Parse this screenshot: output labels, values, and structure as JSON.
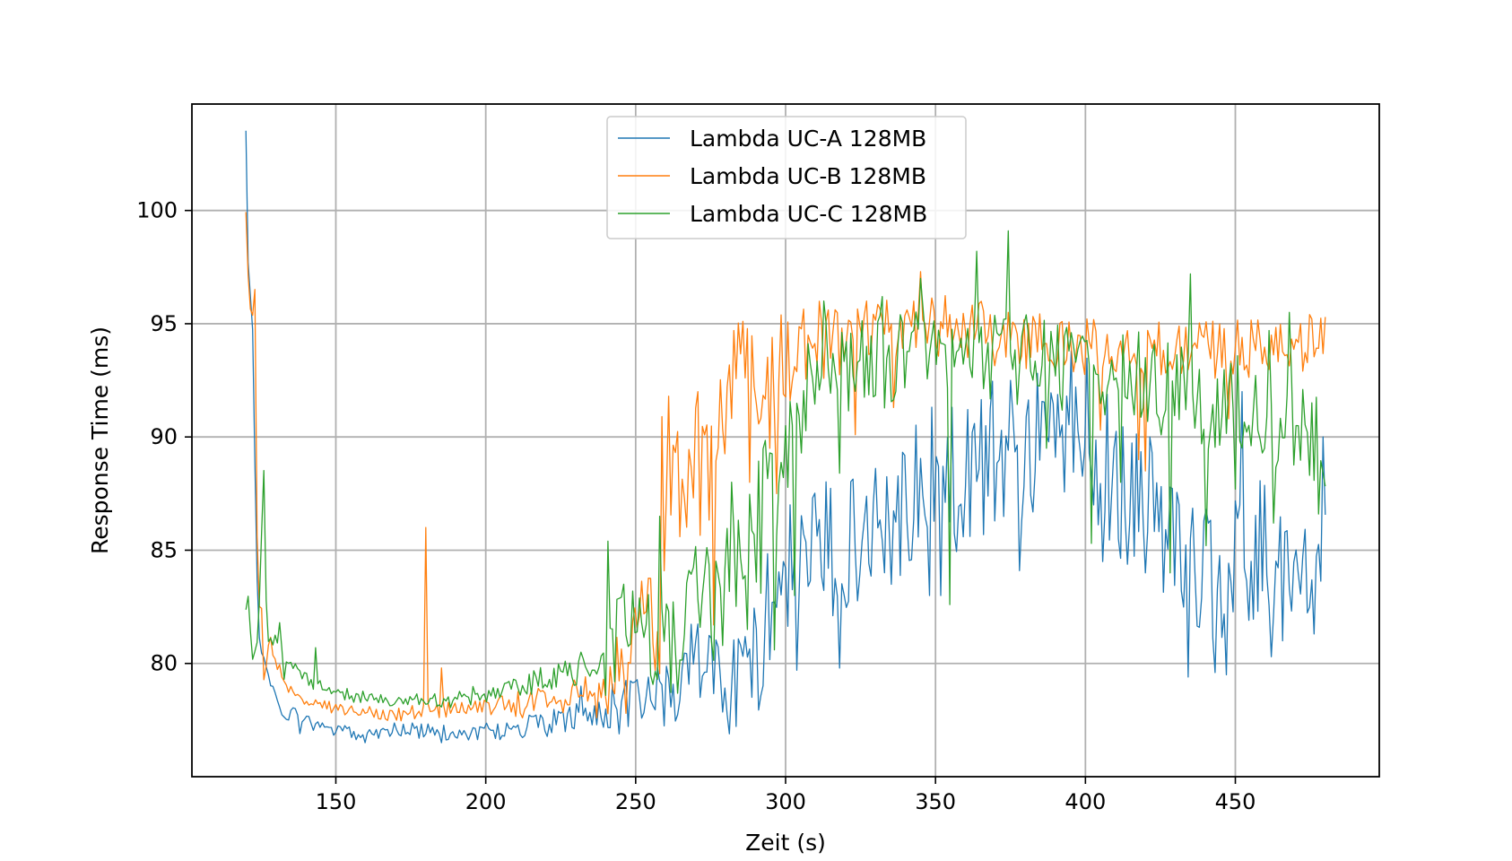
{
  "chart_data": {
    "type": "line",
    "title": "",
    "xlabel": "Zeit (s)",
    "ylabel": "Response Time (ms)",
    "xlim": [
      102,
      498
    ],
    "ylim": [
      75,
      104.7
    ],
    "xticks": [
      150,
      200,
      250,
      300,
      350,
      400,
      450
    ],
    "yticks": [
      80,
      85,
      90,
      95,
      100
    ],
    "grid": true,
    "legend_position": "top-center",
    "x_start": 120,
    "x_end": 480,
    "series": [
      {
        "name": "Lambda UC-A 128MB",
        "color": "#1f77b4",
        "keypoints": [
          [
            120,
            103.4
          ],
          [
            121,
            95.8
          ],
          [
            122,
            96.7
          ],
          [
            123,
            89.0
          ],
          [
            124,
            82.0
          ],
          [
            125,
            80.5
          ],
          [
            127,
            79.8
          ],
          [
            130,
            78.5
          ],
          [
            133,
            77.3
          ],
          [
            136,
            78.2
          ],
          [
            140,
            77.4
          ],
          [
            150,
            77.0
          ],
          [
            160,
            76.9
          ],
          [
            170,
            77.1
          ],
          [
            180,
            77.0
          ],
          [
            190,
            76.9
          ],
          [
            200,
            77.0
          ],
          [
            210,
            77.1
          ],
          [
            220,
            77.3
          ],
          [
            230,
            77.6
          ],
          [
            240,
            77.9
          ],
          [
            250,
            78.2
          ],
          [
            260,
            78.6
          ],
          [
            265,
            78.7
          ],
          [
            267,
            80.5
          ],
          [
            275,
            79.6
          ],
          [
            285,
            79.1
          ],
          [
            290,
            80.0
          ],
          [
            295,
            83.0
          ],
          [
            300,
            84.0
          ],
          [
            305,
            84.5
          ],
          [
            310,
            84.8
          ],
          [
            320,
            85.5
          ],
          [
            330,
            86.2
          ],
          [
            340,
            87.0
          ],
          [
            350,
            88.0
          ],
          [
            360,
            88.5
          ],
          [
            370,
            89.3
          ],
          [
            380,
            89.5
          ],
          [
            390,
            90.0
          ],
          [
            400,
            90.3
          ],
          [
            410,
            88.0
          ],
          [
            420,
            87.0
          ],
          [
            430,
            85.0
          ],
          [
            440,
            84.0
          ],
          [
            450,
            84.3
          ],
          [
            460,
            85.0
          ],
          [
            470,
            84.0
          ],
          [
            480,
            84.5
          ]
        ],
        "noise": [
          0.3,
          0.3,
          0.3,
          0.35,
          0.35,
          0.45,
          0.6,
          0.7,
          1.2,
          1.9,
          2.4,
          2.8,
          3.0,
          3.2,
          3.2,
          3.5,
          3.3,
          3.3,
          3.3,
          3.3,
          3.3,
          3.3,
          3.3,
          3.3,
          3.3
        ],
        "spikes": [
          [
            138,
            76.9
          ],
          [
            160,
            76.5
          ],
          [
            185,
            76.5
          ],
          [
            198,
            77.2
          ],
          [
            232,
            79.0
          ],
          [
            299,
            84.5
          ],
          [
            304,
            79.7
          ],
          [
            318,
            79.8
          ],
          [
            348,
            83.0
          ],
          [
            352,
            83.0
          ],
          [
            375,
            92.5
          ],
          [
            378,
            84.1
          ],
          [
            383,
            88.5
          ],
          [
            395,
            93.8
          ],
          [
            403,
            87.0
          ],
          [
            406,
            84.5
          ],
          [
            434,
            79.4
          ],
          [
            443,
            79.6
          ],
          [
            447,
            79.5
          ],
          [
            452,
            92.0
          ],
          [
            462,
            80.3
          ],
          [
            466,
            81.0
          ],
          [
            476,
            81.3
          ],
          [
            479,
            90.0
          ]
        ]
      },
      {
        "name": "Lambda UC-B 128MB",
        "color": "#ff7f0e",
        "keypoints": [
          [
            120,
            99.8
          ],
          [
            121,
            96.4
          ],
          [
            122,
            94.8
          ],
          [
            123,
            96.6
          ],
          [
            124,
            82.0
          ],
          [
            125,
            83.3
          ],
          [
            126,
            79.3
          ],
          [
            128,
            81.0
          ],
          [
            130,
            80.0
          ],
          [
            135,
            78.8
          ],
          [
            140,
            78.2
          ],
          [
            150,
            78.0
          ],
          [
            160,
            77.9
          ],
          [
            170,
            77.8
          ],
          [
            180,
            77.9
          ],
          [
            190,
            78.0
          ],
          [
            200,
            78.1
          ],
          [
            210,
            78.2
          ],
          [
            220,
            78.4
          ],
          [
            230,
            78.6
          ],
          [
            240,
            79.0
          ],
          [
            245,
            80.5
          ],
          [
            250,
            82.0
          ],
          [
            255,
            83.0
          ],
          [
            258,
            80.0
          ],
          [
            260,
            86.0
          ],
          [
            265,
            88.0
          ],
          [
            270,
            88.5
          ],
          [
            275,
            89.0
          ],
          [
            280,
            91.0
          ],
          [
            285,
            93.0
          ],
          [
            290,
            92.5
          ],
          [
            300,
            93.5
          ],
          [
            310,
            94.0
          ],
          [
            320,
            94.3
          ],
          [
            330,
            94.6
          ],
          [
            340,
            94.8
          ],
          [
            350,
            94.9
          ],
          [
            360,
            94.8
          ],
          [
            370,
            94.5
          ],
          [
            380,
            94.3
          ],
          [
            390,
            94.0
          ],
          [
            400,
            94.0
          ],
          [
            410,
            93.8
          ],
          [
            420,
            93.8
          ],
          [
            430,
            93.8
          ],
          [
            440,
            93.8
          ],
          [
            450,
            93.9
          ],
          [
            460,
            93.9
          ],
          [
            470,
            93.6
          ],
          [
            480,
            94.2
          ]
        ],
        "noise": [
          0.3,
          0.3,
          0.3,
          0.35,
          0.35,
          0.45,
          0.6,
          0.7,
          1.5,
          2.8,
          3.0,
          2.4,
          2.0,
          1.6,
          1.4,
          1.4,
          1.4,
          1.3,
          1.3,
          1.3,
          1.3,
          1.3,
          1.3,
          1.3,
          1.3
        ],
        "spikes": [
          [
            180,
            86.0
          ],
          [
            185,
            79.8
          ],
          [
            212,
            77.6
          ],
          [
            237,
            77.6
          ],
          [
            247,
            77.8
          ],
          [
            259,
            90.9
          ],
          [
            261,
            91.8
          ],
          [
            265,
            85.6
          ],
          [
            271,
            92.0
          ],
          [
            276,
            81.7
          ],
          [
            283,
            94.7
          ],
          [
            288,
            88.0
          ],
          [
            295,
            89.5
          ],
          [
            297,
            87.5
          ],
          [
            323,
            90.1
          ],
          [
            336,
            91.3
          ],
          [
            345,
            97.3
          ],
          [
            355,
            95.4
          ],
          [
            374,
            95.5
          ],
          [
            405,
            90.3
          ],
          [
            418,
            89.0
          ],
          [
            420,
            88.5
          ],
          [
            431,
            94.9
          ],
          [
            448,
            90.8
          ],
          [
            462,
            94.5
          ],
          [
            475,
            95.4
          ],
          [
            480,
            95.3
          ]
        ]
      },
      {
        "name": "Lambda UC-C 128MB",
        "color": "#2ca02c",
        "keypoints": [
          [
            120,
            82.4
          ],
          [
            121,
            83.2
          ],
          [
            122,
            79.9
          ],
          [
            124,
            81.0
          ],
          [
            125,
            84.8
          ],
          [
            126,
            88.4
          ],
          [
            127,
            81.0
          ],
          [
            130,
            81.0
          ],
          [
            135,
            80.0
          ],
          [
            140,
            79.3
          ],
          [
            150,
            78.7
          ],
          [
            160,
            78.5
          ],
          [
            170,
            78.4
          ],
          [
            180,
            78.3
          ],
          [
            190,
            78.4
          ],
          [
            200,
            78.7
          ],
          [
            210,
            79.0
          ],
          [
            220,
            79.3
          ],
          [
            230,
            79.6
          ],
          [
            240,
            80.3
          ],
          [
            245,
            81.5
          ],
          [
            250,
            82.0
          ],
          [
            255,
            81.5
          ],
          [
            260,
            80.5
          ],
          [
            265,
            80.0
          ],
          [
            270,
            83.0
          ],
          [
            275,
            82.0
          ],
          [
            280,
            84.0
          ],
          [
            285,
            85.0
          ],
          [
            290,
            86.0
          ],
          [
            295,
            88.0
          ],
          [
            300,
            89.0
          ],
          [
            305,
            91.0
          ],
          [
            310,
            92.5
          ],
          [
            320,
            93.0
          ],
          [
            330,
            93.2
          ],
          [
            340,
            93.5
          ],
          [
            350,
            93.7
          ],
          [
            360,
            93.5
          ],
          [
            370,
            93.7
          ],
          [
            380,
            93.5
          ],
          [
            390,
            93.0
          ],
          [
            400,
            92.8
          ],
          [
            410,
            92.5
          ],
          [
            420,
            92.5
          ],
          [
            430,
            92.0
          ],
          [
            440,
            91.5
          ],
          [
            450,
            91.5
          ],
          [
            460,
            91.0
          ],
          [
            470,
            90.5
          ],
          [
            480,
            89.5
          ]
        ],
        "noise": [
          0.3,
          0.3,
          0.3,
          0.35,
          0.35,
          0.45,
          0.6,
          0.7,
          1.9,
          2.5,
          3.0,
          2.8,
          2.4,
          2.2,
          2.2,
          2.2,
          2.2,
          2.2,
          2.2,
          2.2,
          2.2,
          2.2,
          2.2,
          2.2,
          2.2
        ],
        "spikes": [
          [
            131,
            81.8
          ],
          [
            133,
            79.3
          ],
          [
            143,
            80.7
          ],
          [
            232,
            80.5
          ],
          [
            241,
            85.4
          ],
          [
            246,
            83.5
          ],
          [
            258,
            86.5
          ],
          [
            263,
            80.6
          ],
          [
            282,
            88.0
          ],
          [
            287,
            81.5
          ],
          [
            292,
            83.1
          ],
          [
            296,
            80.6
          ],
          [
            300,
            90.5
          ],
          [
            303,
            83.0
          ],
          [
            313,
            96.0
          ],
          [
            318,
            88.4
          ],
          [
            327,
            94.0
          ],
          [
            332,
            96.2
          ],
          [
            342,
            94.6
          ],
          [
            345,
            97.0
          ],
          [
            355,
            82.6
          ],
          [
            364,
            98.2
          ],
          [
            374,
            99.1
          ],
          [
            378,
            93.0
          ],
          [
            387,
            89.5
          ],
          [
            397,
            93.3
          ],
          [
            402,
            85.3
          ],
          [
            412,
            88.0
          ],
          [
            420,
            93.5
          ],
          [
            428,
            84.0
          ],
          [
            435,
            97.2
          ],
          [
            440,
            85.2
          ],
          [
            450,
            87.7
          ],
          [
            461,
            94.7
          ],
          [
            463,
            86.2
          ],
          [
            468,
            95.5
          ],
          [
            471,
            90.5
          ],
          [
            478,
            86.6
          ]
        ]
      }
    ]
  }
}
